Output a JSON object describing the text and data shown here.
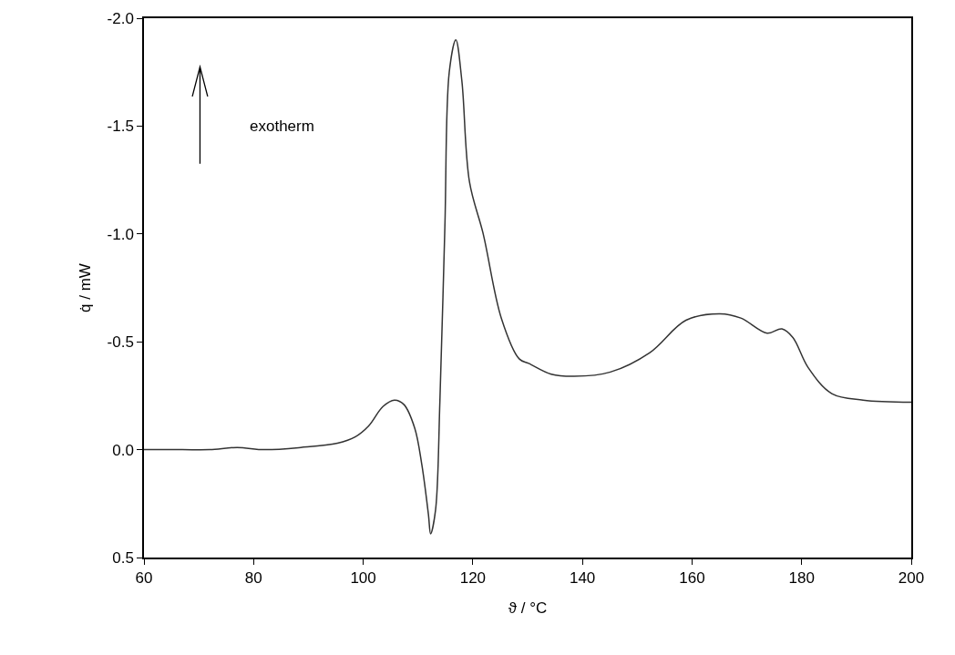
{
  "chart_data": {
    "type": "line",
    "xlabel": "ϑ / °C",
    "ylabel": "q̇ / mW",
    "annotations": [
      "exotherm"
    ],
    "x": [
      60,
      67,
      72,
      77,
      82,
      88.6,
      95.3,
      98.6,
      101,
      103.6,
      105.7,
      107.4,
      109.4,
      110.7,
      111.9,
      112.3,
      113.2,
      114,
      114.9,
      115.7,
      116.9,
      118,
      119.4,
      121.9,
      125.2,
      128.5,
      130.2,
      134.3,
      138.5,
      145.1,
      152.3,
      158.9,
      165.1,
      168.9,
      173.7,
      176.4,
      178.4,
      181.2,
      185.5,
      191.2,
      200
    ],
    "series": [
      {
        "color": "#333333",
        "values": [
          0,
          0,
          0,
          -0.01,
          0,
          -0.01,
          -0.03,
          -0.06,
          -0.11,
          -0.2,
          -0.23,
          -0.21,
          -0.1,
          0.07,
          0.3,
          0.39,
          0.28,
          -0.23,
          -1.03,
          -1.75,
          -1.9,
          -1.71,
          -1.24,
          -1.0,
          -0.61,
          -0.42,
          -0.4,
          -0.35,
          -0.34,
          -0.36,
          -0.45,
          -0.6,
          -0.63,
          -0.61,
          -0.54,
          -0.56,
          -0.52,
          -0.38,
          -0.26,
          -0.23,
          -0.22
        ]
      }
    ],
    "xlim": [
      60,
      200
    ],
    "xticks": [
      60,
      80,
      100,
      120,
      140,
      160,
      180,
      200
    ],
    "ylim": [
      0.5,
      -2.0
    ],
    "yticks": [
      {
        "value": -2.0,
        "label": "-2.0"
      },
      {
        "value": -1.5,
        "label": "-1.5"
      },
      {
        "value": -1.0,
        "label": "-1.0"
      },
      {
        "value": -0.5,
        "label": "-0.5"
      },
      {
        "value": 0,
        "label": "0.0"
      },
      {
        "value": 0.5,
        "label": "0.5"
      }
    ],
    "legend": false,
    "marker": "none",
    "line_style": "solid"
  }
}
